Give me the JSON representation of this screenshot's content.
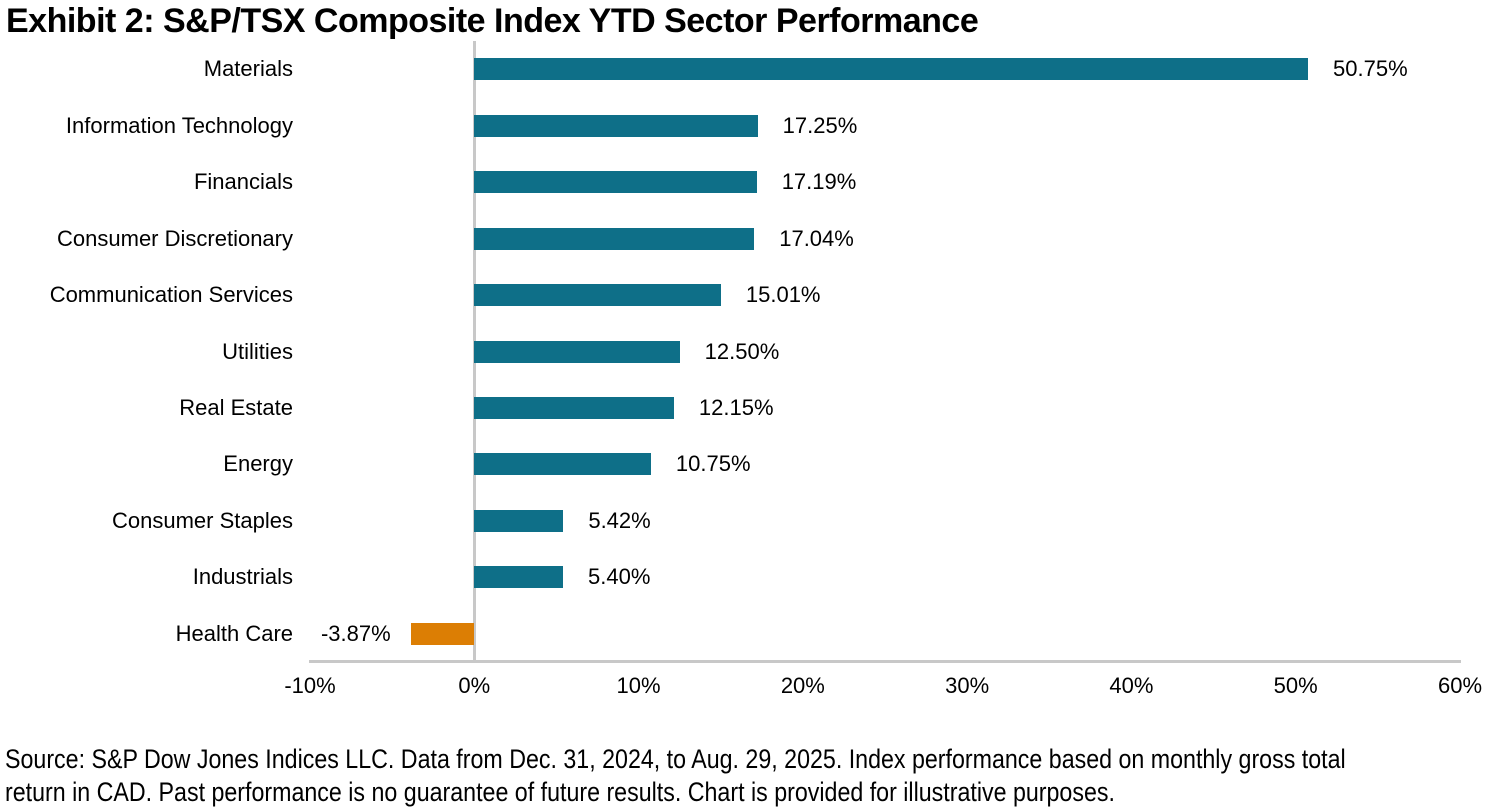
{
  "title": "Exhibit 2: S&P/TSX Composite Index YTD Sector Performance",
  "chart_data": {
    "type": "bar",
    "orientation": "horizontal",
    "title": "Exhibit 2: S&P/TSX Composite Index YTD Sector Performance",
    "categories": [
      "Materials",
      "Information Technology",
      "Financials",
      "Consumer Discretionary",
      "Communication Services",
      "Utilities",
      "Real Estate",
      "Energy",
      "Consumer Staples",
      "Industrials",
      "Health Care"
    ],
    "values": [
      50.75,
      17.25,
      17.19,
      17.04,
      15.01,
      12.5,
      12.15,
      10.75,
      5.42,
      5.4,
      -3.87
    ],
    "value_labels": [
      "50.75%",
      "17.25%",
      "17.19%",
      "17.04%",
      "15.01%",
      "12.50%",
      "12.15%",
      "10.75%",
      "5.42%",
      "5.40%",
      "-3.87%"
    ],
    "xlim": [
      -10,
      60
    ],
    "x_tick_values": [
      -10,
      0,
      10,
      20,
      30,
      40,
      50,
      60
    ],
    "x_tick_labels": [
      "-10%",
      "0%",
      "10%",
      "20%",
      "30%",
      "40%",
      "50%",
      "60%"
    ],
    "xlabel": "",
    "ylabel": "",
    "grid": "off",
    "legend": "none",
    "bar_color": "#0e6f88",
    "negative_bar_color": "#dc7e04",
    "axis_color": "#c8c8c8"
  },
  "footer": {
    "line1": "Source: S&P Dow Jones Indices LLC. Data from Dec. 31, 2024, to Aug. 29, 2025. Index performance based on monthly gross total",
    "line2": "return in CAD. Past performance is no guarantee of future results. Chart is provided for illustrative purposes."
  }
}
